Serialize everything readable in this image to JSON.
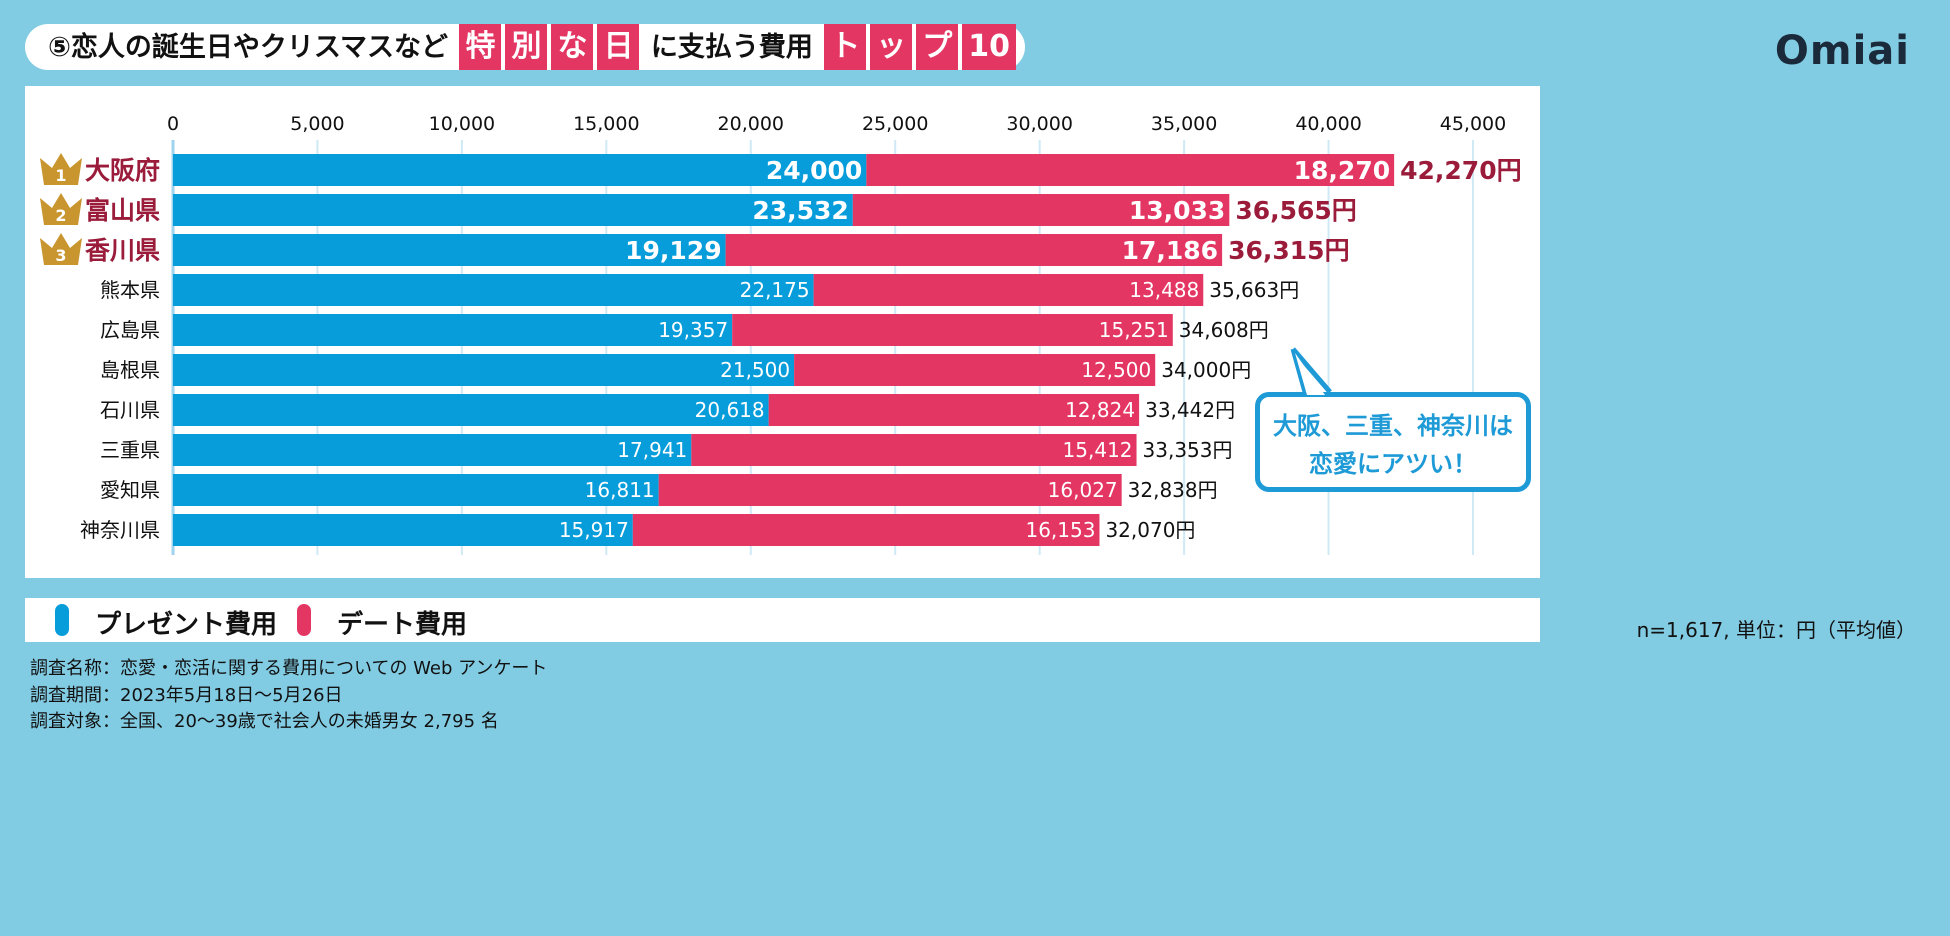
{
  "title": {
    "prefix": "⑤恋人の誕生日やクリスマスなど",
    "highlight1": [
      "特",
      "別",
      "な",
      "日"
    ],
    "middle": "に支払う費用",
    "highlight2": [
      "ト",
      "ッ",
      "プ",
      "10"
    ]
  },
  "logo": "Omiai",
  "callout": {
    "line1": "大阪、三重、神奈川は",
    "line2": "恋愛にアツい！"
  },
  "note": "n=1,617, 単位：円（平均値）",
  "footer": [
    "調査名称：恋愛・恋活に関する費用についての Web アンケート",
    "調査期間：2023年5月18日〜5月26日",
    "調査対象：全国、20〜39歳で社会人の未婚男女 2,795 名"
  ],
  "colors": {
    "present": "#079CDA",
    "date": "#E33662",
    "top3_label": "#9B1B3A",
    "crown": "#C9952E",
    "background": "#82CCE3"
  },
  "chart_data": {
    "type": "bar",
    "orientation": "horizontal",
    "stacked": true,
    "xlim": [
      0,
      45000
    ],
    "xticks": [
      "0",
      "5,000",
      "10,000",
      "15,000",
      "20,000",
      "25,000",
      "30,000",
      "35,000",
      "40,000",
      "45,000"
    ],
    "grid": true,
    "legend_placement": "bottom-left",
    "categories": [
      "大阪府",
      "富山県",
      "香川県",
      "熊本県",
      "広島県",
      "島根県",
      "石川県",
      "三重県",
      "愛知県",
      "神奈川県"
    ],
    "ranks": [
      "1",
      "2",
      "3"
    ],
    "series": [
      {
        "name": "プレゼント費用",
        "values": [
          24000,
          23532,
          19129,
          22175,
          19357,
          21500,
          20618,
          17941,
          16811,
          15917
        ],
        "labels": [
          "24,000",
          "23,532",
          "19,129",
          "22,175",
          "19,357",
          "21,500",
          "20,618",
          "17,941",
          "16,811",
          "15,917"
        ]
      },
      {
        "name": "デート費用",
        "values": [
          18270,
          13033,
          17186,
          13488,
          15251,
          12500,
          12824,
          15412,
          16027,
          16153
        ],
        "labels": [
          "18,270",
          "13,033",
          "17,186",
          "13,488",
          "15,251",
          "12,500",
          "12,824",
          "15,412",
          "16,027",
          "16,153"
        ]
      }
    ],
    "totals": [
      "42,270円",
      "36,565円",
      "36,315円",
      "35,663円",
      "34,608円",
      "34,000円",
      "33,442円",
      "33,353円",
      "32,838円",
      "32,070円"
    ]
  }
}
